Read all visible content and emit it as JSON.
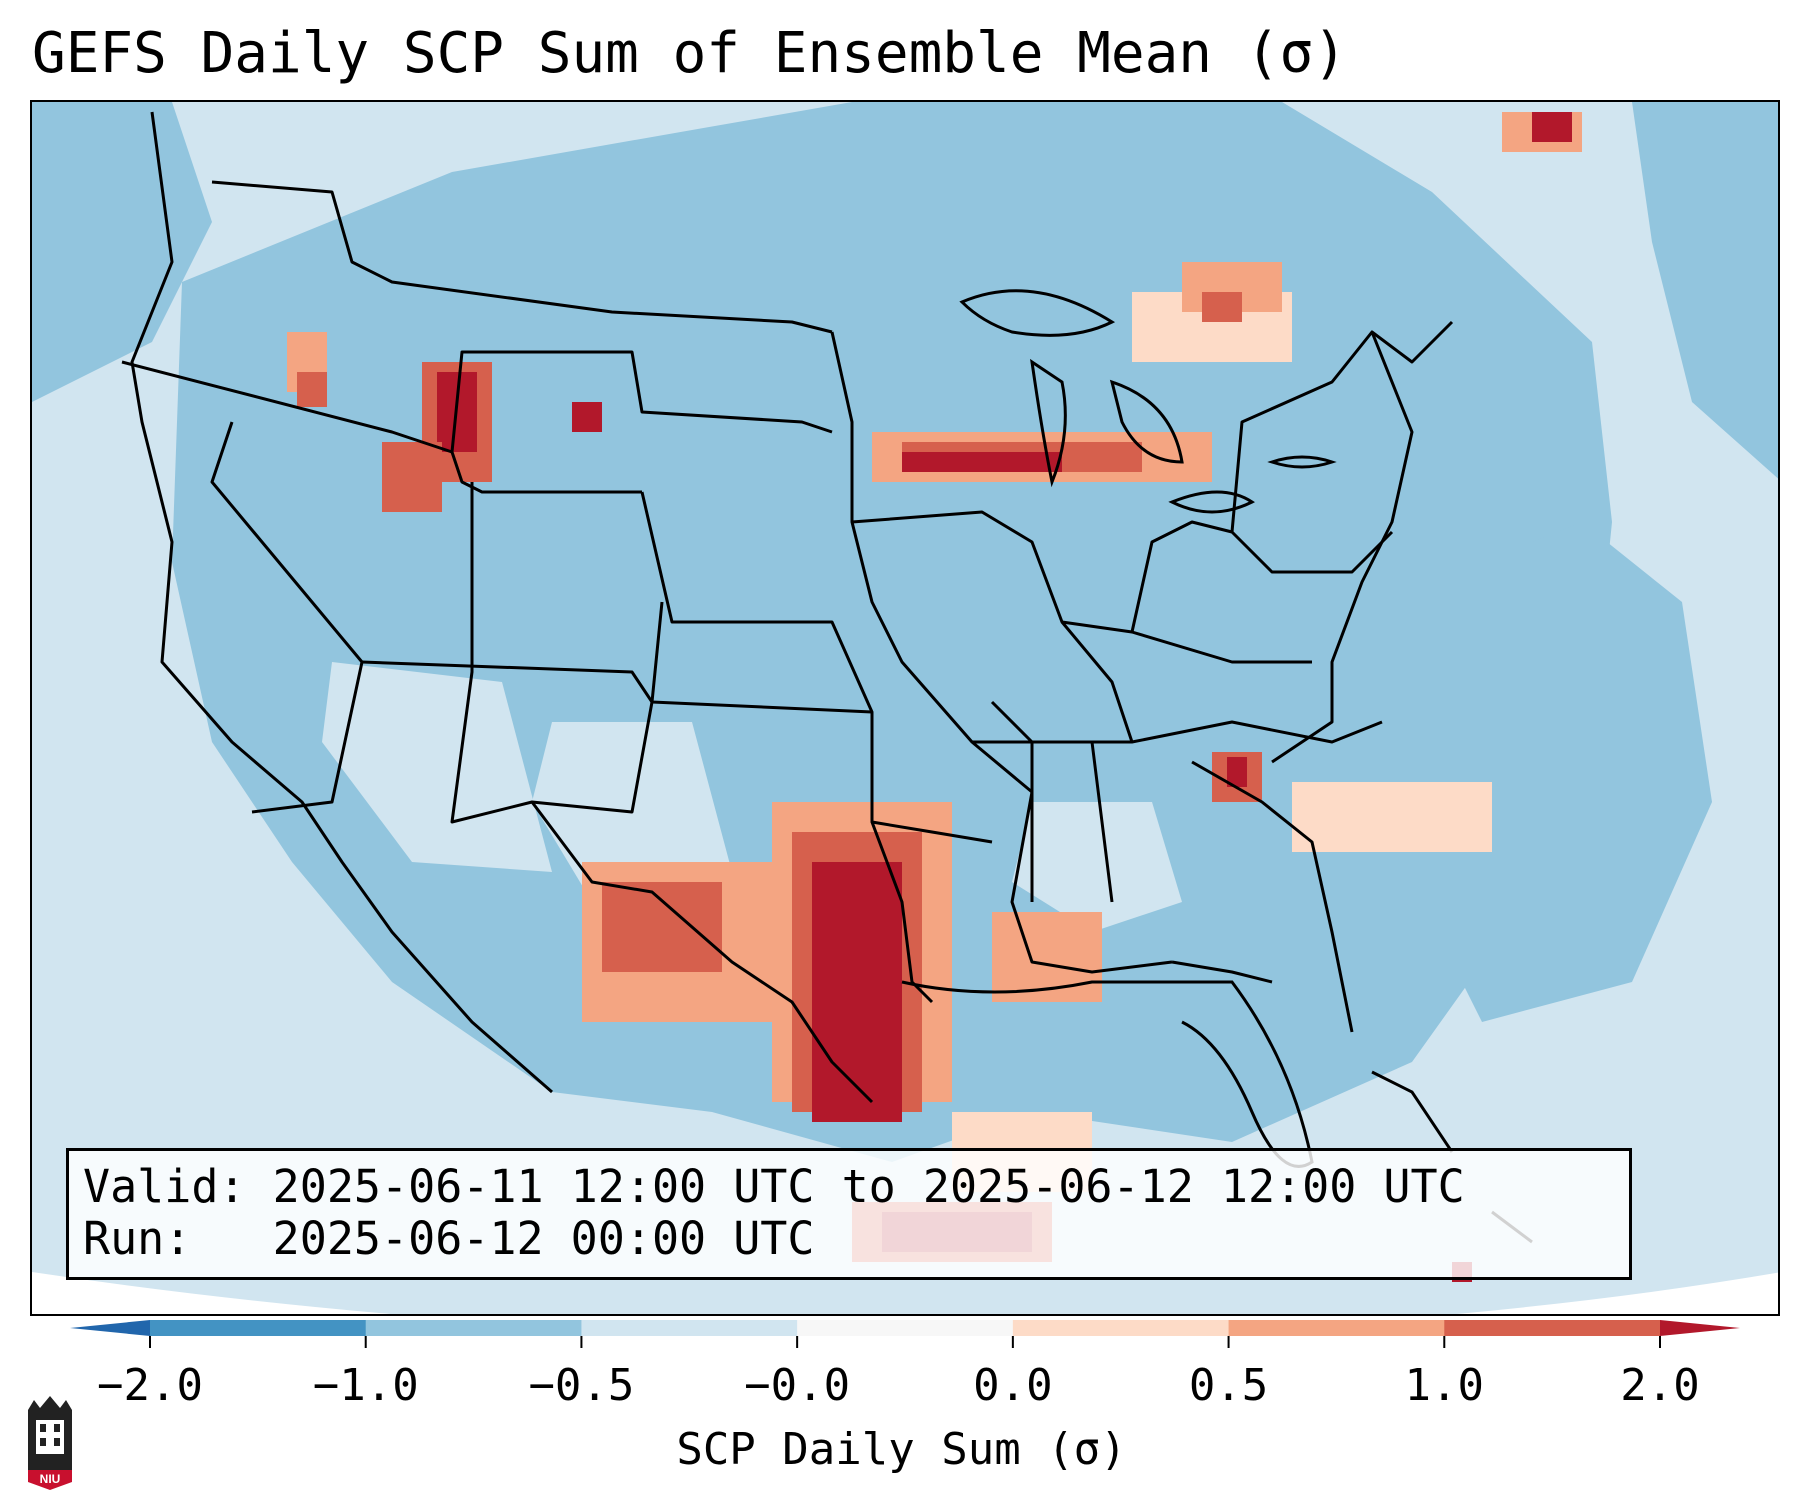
{
  "title": "GEFS Daily SCP Sum of Ensemble Mean (σ)",
  "info": {
    "valid_line": "Valid: 2025-06-11 12:00 UTC to 2025-06-12 12:00 UTC",
    "run_line": "Run:   2025-06-12 00:00 UTC"
  },
  "colorbar": {
    "label": "SCP Daily Sum (σ)",
    "ticks": [
      "−2.0",
      "−1.0",
      "−0.5",
      "−0.0",
      "0.0",
      "0.5",
      "1.0",
      "2.0"
    ],
    "bin_colors": [
      "#4393c3",
      "#92c5de",
      "#d1e5f0",
      "#f7f7f7",
      "#fddbc7",
      "#f4a582",
      "#d6604d"
    ],
    "under_color": "#2166ac",
    "over_color": "#b2182b",
    "extend": "both"
  },
  "map": {
    "region": "Contiguous United States",
    "background_color": "#d1e5f0"
  },
  "logo": {
    "text": "NIU",
    "color": "#c8102e"
  }
}
